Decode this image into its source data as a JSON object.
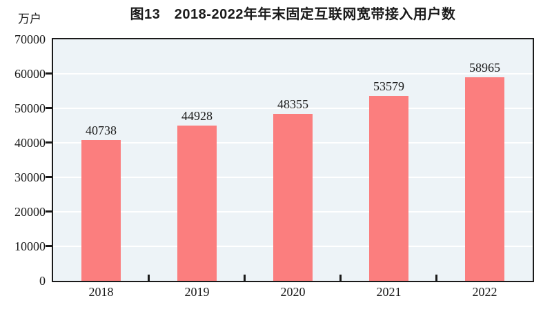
{
  "chart_data": {
    "type": "bar",
    "title": "图13　2018-2022年年末固定互联网宽带接入用户数",
    "unit": "万户",
    "xlabel": "",
    "ylabel": "万户",
    "categories": [
      "2018",
      "2019",
      "2020",
      "2021",
      "2022"
    ],
    "values": [
      40738,
      44928,
      48355,
      53579,
      58965
    ],
    "value_labels": [
      "40738",
      "44928",
      "48355",
      "53579",
      "58965"
    ],
    "ylim": [
      0,
      70000
    ],
    "ytick_interval": 10000,
    "yticks": [
      0,
      10000,
      20000,
      30000,
      40000,
      50000,
      60000,
      70000
    ],
    "grid": "horizontal",
    "legend_position": "none",
    "colors": {
      "bar": "#fb7e7e",
      "plot_background": "#edf3f7",
      "gridline": "#ffffff",
      "axis": "#1a1a1a",
      "text": "#1a1a1a",
      "page_background": "#ffffff"
    }
  }
}
